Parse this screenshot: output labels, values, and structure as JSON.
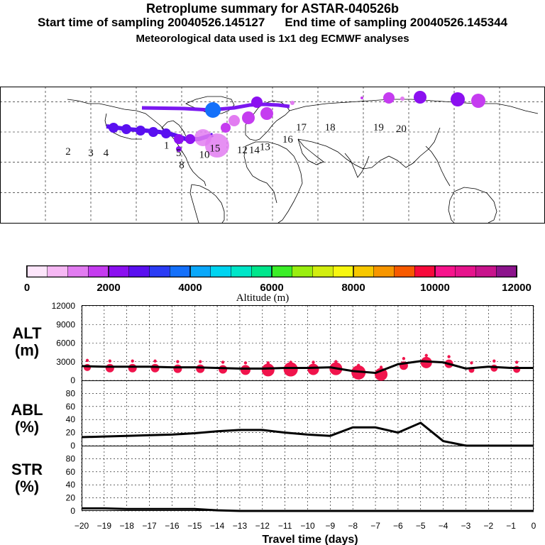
{
  "header": {
    "title": "Retroplume summary for ASTAR-040526b",
    "start_label": "Start time of sampling 20040526.145127",
    "end_label": "End time of sampling 20040526.145344",
    "met_label": "Meteorological data used is 1x1 deg ECMWF analyses"
  },
  "colorbar": {
    "colors": [
      "#fde6fb",
      "#f6b8f4",
      "#e27cf1",
      "#c53cf0",
      "#8b10f0",
      "#5a10f0",
      "#2b3cf5",
      "#1470fa",
      "#0aa8fa",
      "#00d4f0",
      "#00e6c8",
      "#00e68c",
      "#3cee28",
      "#9aee10",
      "#d2ee10",
      "#f7f710",
      "#f7c800",
      "#f79600",
      "#f75a00",
      "#f70a3c",
      "#f7148c",
      "#e6148c",
      "#c8148c",
      "#8c148c"
    ],
    "tick_values": [
      "0",
      "2000",
      "4000",
      "6000",
      "8000",
      "10000",
      "12000"
    ],
    "label": "Altitude (m)"
  },
  "map": {
    "labels": [
      {
        "text": "17",
        "lon": 19,
        "lat": 61
      },
      {
        "text": "18",
        "lon": 38,
        "lat": 61
      },
      {
        "text": "19",
        "lon": 70,
        "lat": 61
      },
      {
        "text": "20",
        "lon": 85,
        "lat": 60
      },
      {
        "text": "1",
        "lon": -70,
        "lat": 49
      },
      {
        "text": "5",
        "lon": -62,
        "lat": 44
      },
      {
        "text": "8",
        "lon": -60,
        "lat": 36
      },
      {
        "text": "10",
        "lon": -45,
        "lat": 43
      },
      {
        "text": "12",
        "lon": -20,
        "lat": 46
      },
      {
        "text": "14",
        "lon": -12,
        "lat": 46
      },
      {
        "text": "13",
        "lon": -5,
        "lat": 48
      },
      {
        "text": "16",
        "lon": 10,
        "lat": 53
      },
      {
        "text": "15",
        "lon": -38,
        "lat": 47
      },
      {
        "text": "2",
        "lon": -135,
        "lat": 45
      },
      {
        "text": "3",
        "lon": -120,
        "lat": 44
      },
      {
        "text": "4",
        "lon": -110,
        "lat": 44
      }
    ]
  },
  "panels": {
    "alt": {
      "label_1": "ALT",
      "label_2": "(m)",
      "ticks": [
        "0",
        "3000",
        "6000",
        "9000",
        "12000"
      ]
    },
    "abl": {
      "label_1": "ABL",
      "label_2": "(%)",
      "ticks": [
        "0",
        "20",
        "40",
        "60",
        "80"
      ]
    },
    "str": {
      "label_1": "STR",
      "label_2": "(%)",
      "ticks": [
        "0",
        "20",
        "40",
        "60",
        "80"
      ]
    }
  },
  "x_axis": {
    "label": "Travel time (days)",
    "ticks": [
      "−20",
      "−19",
      "−18",
      "−17",
      "−16",
      "−15",
      "−14",
      "−13",
      "−12",
      "−11",
      "−10",
      "−9",
      "−8",
      "−7",
      "−6",
      "−5",
      "−4",
      "−3",
      "−2",
      "−1",
      "0"
    ]
  },
  "chart_data": {
    "type": "line",
    "x": [
      -20,
      -19,
      -18,
      -17,
      -16,
      -15,
      -14,
      -13,
      -12,
      -11,
      -10,
      -9,
      -8,
      -7,
      -6,
      -5,
      -4,
      -3,
      -2,
      -1,
      0
    ],
    "xlabel": "Travel time (days)",
    "xlim": [
      -20,
      0
    ],
    "series": [
      {
        "name": "ALT (m)",
        "ylim": [
          0,
          12000
        ],
        "values": [
          2300,
          2200,
          2200,
          2200,
          2100,
          2100,
          2000,
          1900,
          1900,
          2000,
          2000,
          2100,
          1500,
          1200,
          2600,
          3100,
          2900,
          1900,
          2200,
          2000,
          2000
        ]
      },
      {
        "name": "ABL (%)",
        "ylim": [
          0,
          100
        ],
        "values": [
          13,
          14,
          15,
          16,
          17,
          19,
          22,
          24,
          24,
          20,
          17,
          15,
          28,
          28,
          20,
          35,
          7,
          0,
          0,
          0,
          0
        ]
      },
      {
        "name": "STR (%)",
        "ylim": [
          0,
          100
        ],
        "values": [
          4,
          4,
          3,
          3,
          3,
          3,
          1,
          0,
          0,
          0,
          0,
          0,
          0,
          0,
          0,
          0,
          0,
          0,
          0,
          0,
          0
        ]
      }
    ],
    "alt_dots": {
      "x": [
        -20,
        -19,
        -18,
        -17,
        -16,
        -15,
        -14,
        -13,
        -12,
        -11,
        -10,
        -9,
        -8,
        -7,
        -6,
        -5,
        -4,
        -3,
        -2,
        -1
      ],
      "sizes": [
        5,
        6,
        6,
        6,
        6,
        6,
        6,
        7,
        9,
        10,
        8,
        9,
        10,
        9,
        6,
        8,
        6,
        4,
        5,
        5
      ]
    }
  }
}
